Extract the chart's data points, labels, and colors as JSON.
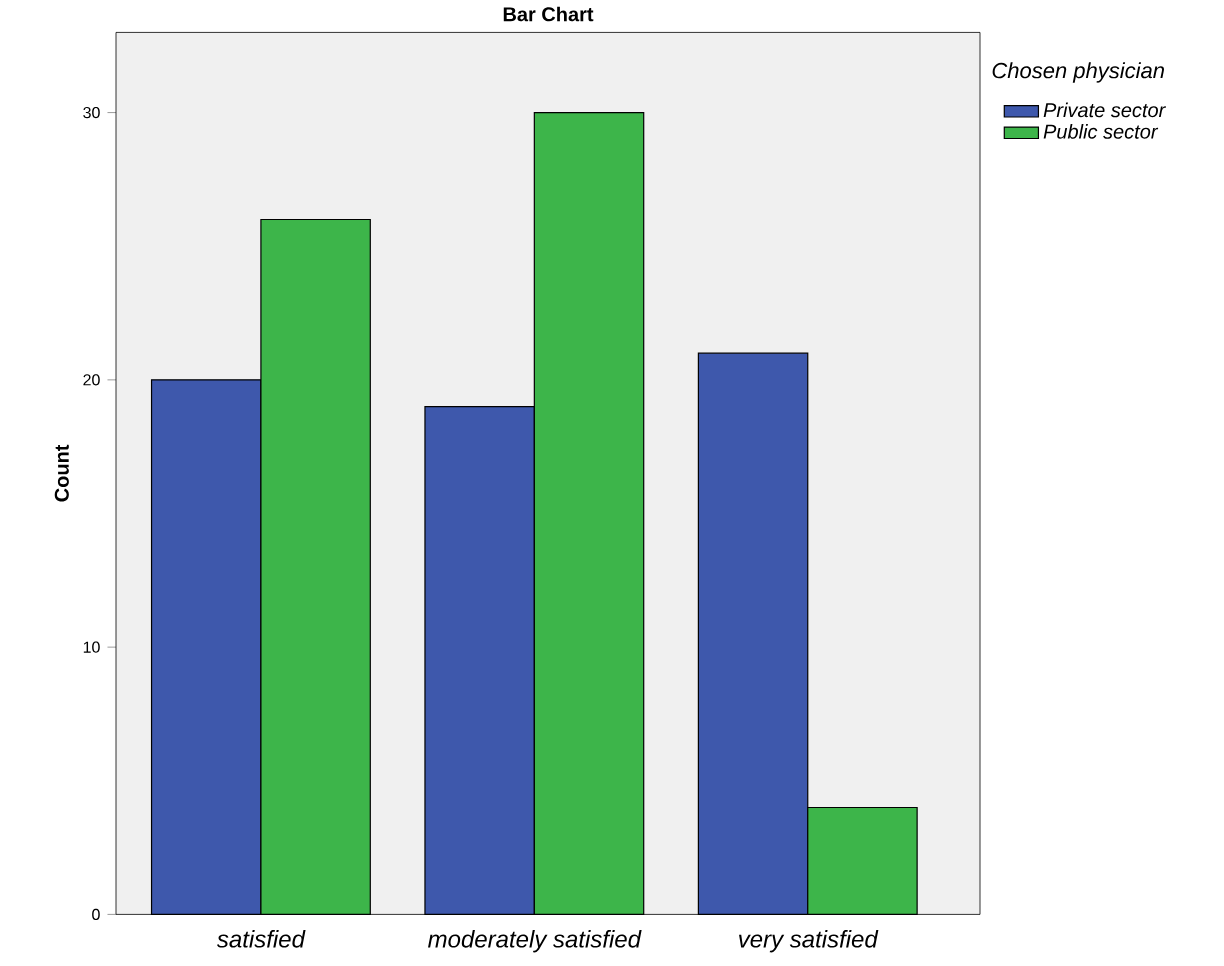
{
  "chart_data": {
    "type": "bar",
    "title": "Bar Chart",
    "ylabel": "Count",
    "legend_title": "Chosen physician",
    "categories": [
      "satisfied",
      "moderately satisfied",
      "very satisfied"
    ],
    "series": [
      {
        "name": "Private sector",
        "color": "#3e58ac",
        "values": [
          20,
          19,
          21
        ]
      },
      {
        "name": "Public sector",
        "color": "#3db54a",
        "values": [
          26,
          30,
          4
        ]
      }
    ],
    "ylim": [
      0,
      33
    ],
    "yticks": [
      0,
      10,
      20,
      30
    ],
    "legend": "right",
    "grid": false
  }
}
